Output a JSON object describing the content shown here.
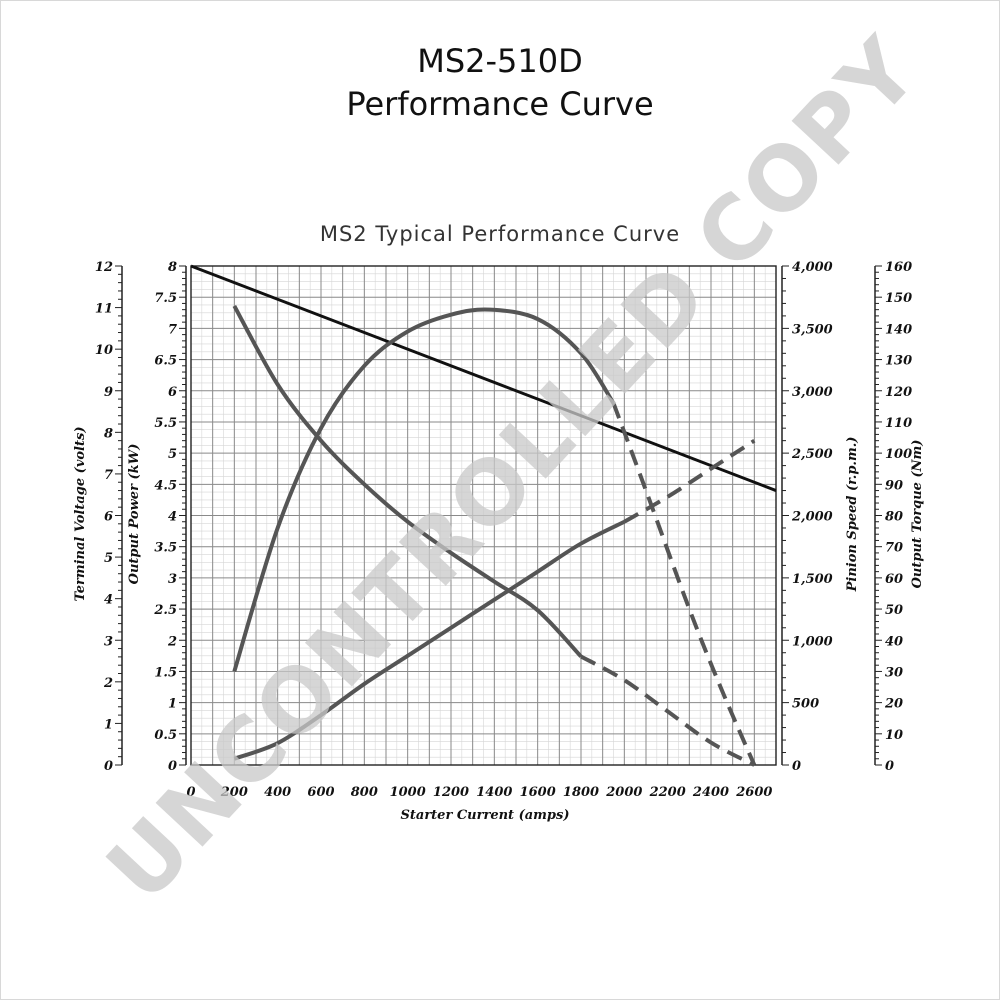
{
  "page": {
    "title_line1": "MS2-510D",
    "title_line2": "Performance Curve",
    "watermark": "UNCONTROLLED COPY"
  },
  "chart_data": {
    "type": "line",
    "title": "MS2 Typical Performance Curve",
    "xlabel": "Starter Current  (amps)",
    "xlim": [
      0,
      2700
    ],
    "xticks": [
      "0",
      "200",
      "400",
      "600",
      "800",
      "1000",
      "1200",
      "1400",
      "1600",
      "1800",
      "2000",
      "2200",
      "2400",
      "2600"
    ],
    "grid": true,
    "axes": {
      "output_power": {
        "label": "Output Power (kW)",
        "side": "left-inner",
        "range": [
          0,
          8
        ],
        "ticks": [
          "0",
          "0.5",
          "1",
          "1.5",
          "2",
          "2.5",
          "3",
          "3.5",
          "4",
          "4.5",
          "5",
          "5.5",
          "6",
          "6.5",
          "7",
          "7.5",
          "8"
        ]
      },
      "terminal_voltage": {
        "label": "Terminal Voltage (volts)",
        "side": "left-outer",
        "range": [
          0,
          12
        ],
        "ticks": [
          "0",
          "1",
          "2",
          "3",
          "4",
          "5",
          "6",
          "7",
          "8",
          "9",
          "10",
          "11",
          "12"
        ]
      },
      "pinion_speed": {
        "label": "Pinion Speed (r.p.m.)",
        "side": "right-inner",
        "range": [
          0,
          4000
        ],
        "ticks": [
          "0",
          "500",
          "1,000",
          "1,500",
          "2,000",
          "2,500",
          "3,000",
          "3,500",
          "4,000"
        ]
      },
      "output_torque": {
        "label": "Output Torque (Nm)",
        "side": "right-outer",
        "range": [
          0,
          160
        ],
        "ticks": [
          "0",
          "10",
          "20",
          "30",
          "40",
          "50",
          "60",
          "70",
          "80",
          "90",
          "100",
          "110",
          "120",
          "130",
          "140",
          "150",
          "160"
        ]
      }
    },
    "series": [
      {
        "axis": "terminal_voltage",
        "color": "#111111",
        "style": "solid",
        "points": [
          [
            0,
            12
          ],
          [
            2700,
            6.6
          ]
        ]
      },
      {
        "axis": "output_power",
        "color": "#555555",
        "style": "solid",
        "points": [
          [
            200,
            1.5
          ],
          [
            400,
            3.8
          ],
          [
            600,
            5.4
          ],
          [
            800,
            6.4
          ],
          [
            1000,
            6.95
          ],
          [
            1200,
            7.22
          ],
          [
            1380,
            7.3
          ],
          [
            1600,
            7.15
          ],
          [
            1800,
            6.6
          ],
          [
            1950,
            5.8
          ]
        ]
      },
      {
        "axis": "output_power",
        "color": "#555555",
        "style": "dashed",
        "points": [
          [
            1950,
            5.8
          ],
          [
            2100,
            4.4
          ],
          [
            2300,
            2.5
          ],
          [
            2450,
            1.2
          ],
          [
            2600,
            0
          ]
        ]
      },
      {
        "axis": "pinion_speed",
        "color": "#555555",
        "style": "solid",
        "points": [
          [
            200,
            3680
          ],
          [
            400,
            3050
          ],
          [
            600,
            2600
          ],
          [
            800,
            2250
          ],
          [
            1000,
            1950
          ],
          [
            1200,
            1700
          ],
          [
            1400,
            1470
          ],
          [
            1600,
            1240
          ],
          [
            1800,
            870
          ]
        ]
      },
      {
        "axis": "pinion_speed",
        "color": "#555555",
        "style": "dashed",
        "points": [
          [
            1800,
            870
          ],
          [
            2000,
            680
          ],
          [
            2200,
            430
          ],
          [
            2400,
            180
          ],
          [
            2600,
            0
          ]
        ]
      },
      {
        "axis": "output_torque",
        "color": "#555555",
        "style": "solid",
        "points": [
          [
            200,
            2
          ],
          [
            400,
            7
          ],
          [
            600,
            16
          ],
          [
            800,
            26
          ],
          [
            1000,
            35
          ],
          [
            1200,
            44
          ],
          [
            1400,
            53
          ],
          [
            1600,
            62
          ],
          [
            1800,
            71
          ],
          [
            2000,
            78
          ]
        ]
      },
      {
        "axis": "output_torque",
        "color": "#555555",
        "style": "dashed",
        "points": [
          [
            2000,
            78
          ],
          [
            2200,
            86
          ],
          [
            2400,
            95
          ],
          [
            2600,
            104
          ]
        ]
      }
    ]
  }
}
